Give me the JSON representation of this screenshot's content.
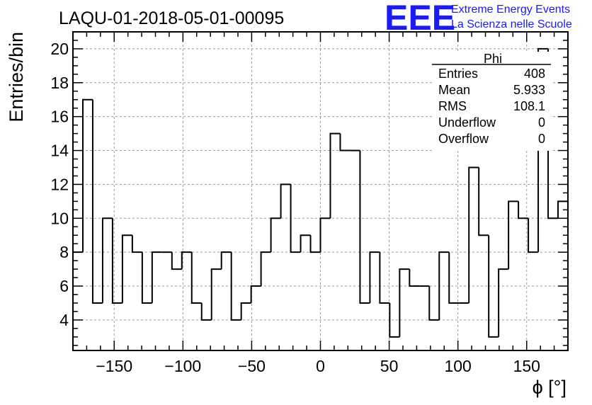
{
  "chart_data": {
    "type": "histogram",
    "title": "LAQU-01-2018-05-01-00095",
    "xlabel": "ϕ [°]",
    "ylabel": "Entries/bin",
    "xlim": [
      -180,
      180
    ],
    "ylim": [
      2.2,
      21
    ],
    "bin_width": 7.2,
    "grid": true,
    "x_ticks": [
      -150,
      -100,
      -50,
      0,
      50,
      100,
      150
    ],
    "x_tick_labels": [
      "−150",
      "−100",
      "−50",
      "0",
      "50",
      "100",
      "150"
    ],
    "y_ticks": [
      4,
      6,
      8,
      10,
      12,
      14,
      16,
      18,
      20
    ],
    "y_tick_labels": [
      "4",
      "6",
      "8",
      "10",
      "12",
      "14",
      "16",
      "18",
      "20"
    ],
    "bin_edges_start": -180,
    "values": [
      8,
      17,
      5,
      10,
      5,
      9,
      8,
      5,
      8,
      8,
      7,
      8,
      5,
      4,
      7,
      8,
      4,
      5,
      6,
      8,
      10,
      12,
      8,
      9,
      8,
      10,
      15,
      14,
      14,
      5,
      8,
      5,
      3,
      7,
      6,
      6,
      4,
      8,
      5,
      5,
      13,
      9,
      3,
      7,
      11,
      10,
      8,
      20,
      10,
      11
    ]
  },
  "logo": {
    "mark": "EEE",
    "line1": "Extreme Energy Events",
    "line2": "La Scienza nelle Scuole",
    "color": "#1a1aff"
  },
  "stats": {
    "name": "Phi",
    "rows": [
      {
        "label": "Entries",
        "value": "408"
      },
      {
        "label": "Mean",
        "value": "5.933"
      },
      {
        "label": "RMS",
        "value": "108.1"
      },
      {
        "label": "Underflow",
        "value": "0"
      },
      {
        "label": "Overflow",
        "value": "0"
      }
    ]
  }
}
